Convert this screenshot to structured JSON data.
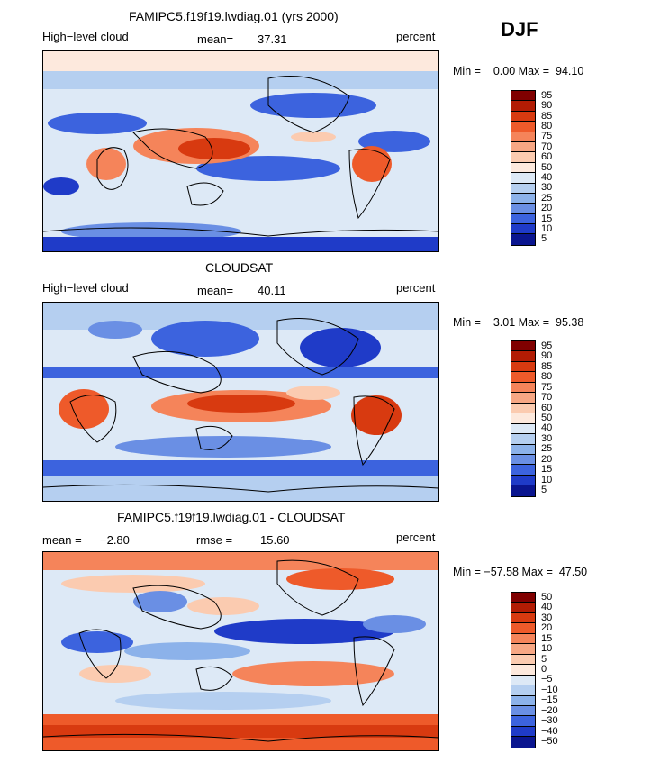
{
  "season": "DJF",
  "levels_abs": [
    "95",
    "90",
    "85",
    "80",
    "75",
    "70",
    "60",
    "50",
    "40",
    "30",
    "25",
    "20",
    "15",
    "10",
    "5"
  ],
  "levels_diff": [
    "50",
    "40",
    "30",
    "20",
    "15",
    "10",
    "5",
    "0",
    "−5",
    "−10",
    "−15",
    "−20",
    "−30",
    "−40",
    "−50"
  ],
  "palette": [
    "#800000",
    "#b21c04",
    "#d83a10",
    "#ee5a2a",
    "#f5845a",
    "#f7a784",
    "#fbcbb0",
    "#fde9dd",
    "#dde9f6",
    "#b5cff0",
    "#8cb2ea",
    "#6a8fe4",
    "#3c63de",
    "#1f3bc8",
    "#0a158f"
  ],
  "panels": [
    {
      "title": "FAMIPC5.f19f19.lwdiag.01 (yrs 2000)",
      "left_label": "High−level cloud",
      "mean_label": "mean=",
      "mean_value": "37.31",
      "units": "percent",
      "min_label": "Min =",
      "min_value": "0.00",
      "max_label": "Max =",
      "max_value": "94.10"
    },
    {
      "title": "CLOUDSAT",
      "left_label": "High−level cloud",
      "mean_label": "mean=",
      "mean_value": "40.11",
      "units": "percent",
      "min_label": "Min =",
      "min_value": "3.01",
      "max_label": "Max =",
      "max_value": "95.38"
    },
    {
      "title": "FAMIPC5.f19f19.lwdiag.01 - CLOUDSAT",
      "left_label": "mean =",
      "left_value": "−2.80",
      "mean_label": "rmse =",
      "mean_value": "15.60",
      "units": "percent",
      "min_label": "Min =",
      "min_value": "−57.58",
      "max_label": "Max =",
      "max_value": "47.50"
    }
  ]
}
